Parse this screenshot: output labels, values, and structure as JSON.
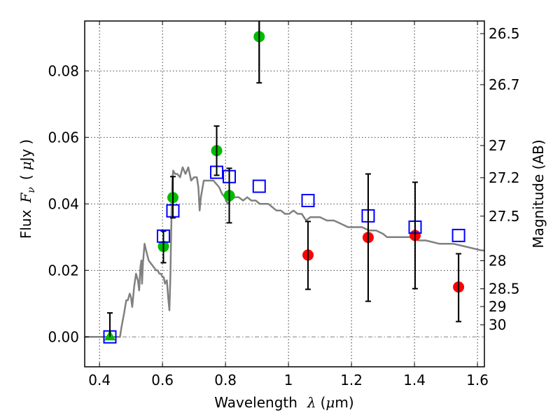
{
  "chart_data": {
    "type": "scatter",
    "title": "",
    "xlabel": "Wavelength  λ (μm)",
    "ylabel": "Flux  Fν  ( μJy )",
    "ylabel_parts": {
      "text": "Flux",
      "symbol": "F",
      "subscript": "ν",
      "unit_open": "(",
      "unit_mu": "μ",
      "unit": "Jy",
      "unit_close": ")"
    },
    "xlabel_parts": {
      "text": "Wavelength",
      "symbol": "λ",
      "unit_open": "(",
      "unit_mu": "μ",
      "unit": "m)"
    },
    "ylabel_right": "Magnitude (AB)",
    "xlim": [
      0.353,
      1.622
    ],
    "ylim": [
      -0.009,
      0.095
    ],
    "grid": true,
    "xticks": [
      0.4,
      0.6,
      0.8,
      1.0,
      1.2,
      1.4,
      1.6
    ],
    "xtick_labels": [
      "0.4",
      "0.6",
      "0.8",
      "1",
      "1.2",
      "1.4",
      "1.6"
    ],
    "yticks": [
      0.0,
      0.02,
      0.04,
      0.06,
      0.08
    ],
    "ytick_labels": [
      "0.00",
      "0.02",
      "0.04",
      "0.06",
      "0.08"
    ],
    "right_axis": {
      "type": "AB magnitude",
      "zero_point": 23.9,
      "ticks": [
        26.5,
        26.7,
        27,
        27.2,
        27.5,
        28,
        28.5,
        29,
        30
      ],
      "tick_labels": [
        "26.5",
        "26.7",
        "27",
        "27.2",
        "27.5",
        "28",
        "28.5",
        "29",
        "30"
      ]
    },
    "colors": {
      "model": "#808080",
      "observed_green": "#00bb00",
      "observed_red": "#ff0000",
      "model_photometry": "#0000ff",
      "errorbar": "#000000",
      "zero_line": "#808080"
    },
    "series": [
      {
        "name": "model spectrum",
        "style": "line",
        "x": [
          0.353,
          0.46,
          0.465,
          0.47,
          0.478,
          0.485,
          0.49,
          0.496,
          0.5,
          0.504,
          0.51,
          0.516,
          0.522,
          0.526,
          0.53,
          0.533,
          0.535,
          0.538,
          0.543,
          0.548,
          0.556,
          0.564,
          0.572,
          0.58,
          0.585,
          0.59,
          0.595,
          0.6,
          0.604,
          0.608,
          0.614,
          0.618,
          0.622,
          0.625,
          0.628,
          0.631,
          0.634,
          0.64,
          0.647,
          0.656,
          0.664,
          0.673,
          0.682,
          0.691,
          0.7,
          0.709,
          0.714,
          0.718,
          0.722,
          0.731,
          0.74,
          0.749,
          0.762,
          0.771,
          0.78,
          0.789,
          0.798,
          0.807,
          0.816,
          0.829,
          0.842,
          0.856,
          0.869,
          0.882,
          0.896,
          0.909,
          0.922,
          0.936,
          0.949,
          0.962,
          0.976,
          0.989,
          1.002,
          1.016,
          1.029,
          1.042,
          1.056,
          1.069,
          1.082,
          1.1,
          1.122,
          1.144,
          1.167,
          1.189,
          1.207,
          1.216,
          1.233,
          1.256,
          1.278,
          1.3,
          1.313,
          1.347,
          1.391,
          1.413,
          1.436,
          1.48,
          1.524,
          1.569,
          1.613,
          1.622
        ],
        "y": [
          0.0,
          0.0,
          0.0,
          0.003,
          0.007,
          0.011,
          0.011,
          0.013,
          0.012,
          0.009,
          0.015,
          0.019,
          0.017,
          0.014,
          0.021,
          0.023,
          0.016,
          0.022,
          0.028,
          0.026,
          0.023,
          0.022,
          0.021,
          0.02,
          0.02,
          0.019,
          0.019,
          0.018,
          0.018,
          0.016,
          0.017,
          0.012,
          0.008,
          0.018,
          0.033,
          0.047,
          0.05,
          0.049,
          0.049,
          0.048,
          0.051,
          0.049,
          0.051,
          0.047,
          0.048,
          0.048,
          0.045,
          0.038,
          0.042,
          0.047,
          0.047,
          0.047,
          0.047,
          0.046,
          0.045,
          0.043,
          0.042,
          0.04,
          0.041,
          0.042,
          0.042,
          0.041,
          0.042,
          0.041,
          0.041,
          0.04,
          0.04,
          0.04,
          0.039,
          0.038,
          0.038,
          0.037,
          0.037,
          0.038,
          0.037,
          0.037,
          0.035,
          0.036,
          0.036,
          0.036,
          0.035,
          0.035,
          0.034,
          0.033,
          0.033,
          0.033,
          0.033,
          0.032,
          0.032,
          0.031,
          0.03,
          0.03,
          0.03,
          0.029,
          0.029,
          0.028,
          0.028,
          0.027,
          0.026,
          0.026
        ]
      },
      {
        "name": "observed (green)",
        "style": "circle",
        "points": [
          {
            "x": 0.603,
            "y": 0.0272,
            "yerr_low": 0.0223,
            "yerr_high": 0.0318
          },
          {
            "x": 0.633,
            "y": 0.0419,
            "yerr_low": 0.0358,
            "yerr_high": 0.0482
          },
          {
            "x": 0.772,
            "y": 0.056,
            "yerr_low": 0.0486,
            "yerr_high": 0.0634
          },
          {
            "x": 0.812,
            "y": 0.0425,
            "yerr_low": 0.0343,
            "yerr_high": 0.0507
          },
          {
            "x": 0.907,
            "y": 0.0903,
            "yerr_low": 0.0764,
            "yerr_high": 0.104
          }
        ]
      },
      {
        "name": "observed upper limit (green triangle)",
        "style": "triangle",
        "points": [
          {
            "x": 0.433,
            "y": 0.0,
            "yerr_low": 0.0,
            "yerr_high": 0.0072
          }
        ]
      },
      {
        "name": "observed (red)",
        "style": "circle",
        "points": [
          {
            "x": 1.062,
            "y": 0.0246,
            "yerr_low": 0.0143,
            "yerr_high": 0.0347
          },
          {
            "x": 1.253,
            "y": 0.0299,
            "yerr_low": 0.0107,
            "yerr_high": 0.049
          },
          {
            "x": 1.402,
            "y": 0.0305,
            "yerr_low": 0.0145,
            "yerr_high": 0.0465
          },
          {
            "x": 1.54,
            "y": 0.015,
            "yerr_low": 0.0046,
            "yerr_high": 0.025
          }
        ]
      },
      {
        "name": "model photometry",
        "style": "open-square",
        "points": [
          {
            "x": 0.433,
            "y": 0.0
          },
          {
            "x": 0.603,
            "y": 0.0303
          },
          {
            "x": 0.633,
            "y": 0.0379
          },
          {
            "x": 0.772,
            "y": 0.0495
          },
          {
            "x": 0.812,
            "y": 0.0482
          },
          {
            "x": 0.907,
            "y": 0.0453
          },
          {
            "x": 1.062,
            "y": 0.041
          },
          {
            "x": 1.253,
            "y": 0.0364
          },
          {
            "x": 1.402,
            "y": 0.033
          },
          {
            "x": 1.54,
            "y": 0.0305
          }
        ]
      }
    ]
  }
}
